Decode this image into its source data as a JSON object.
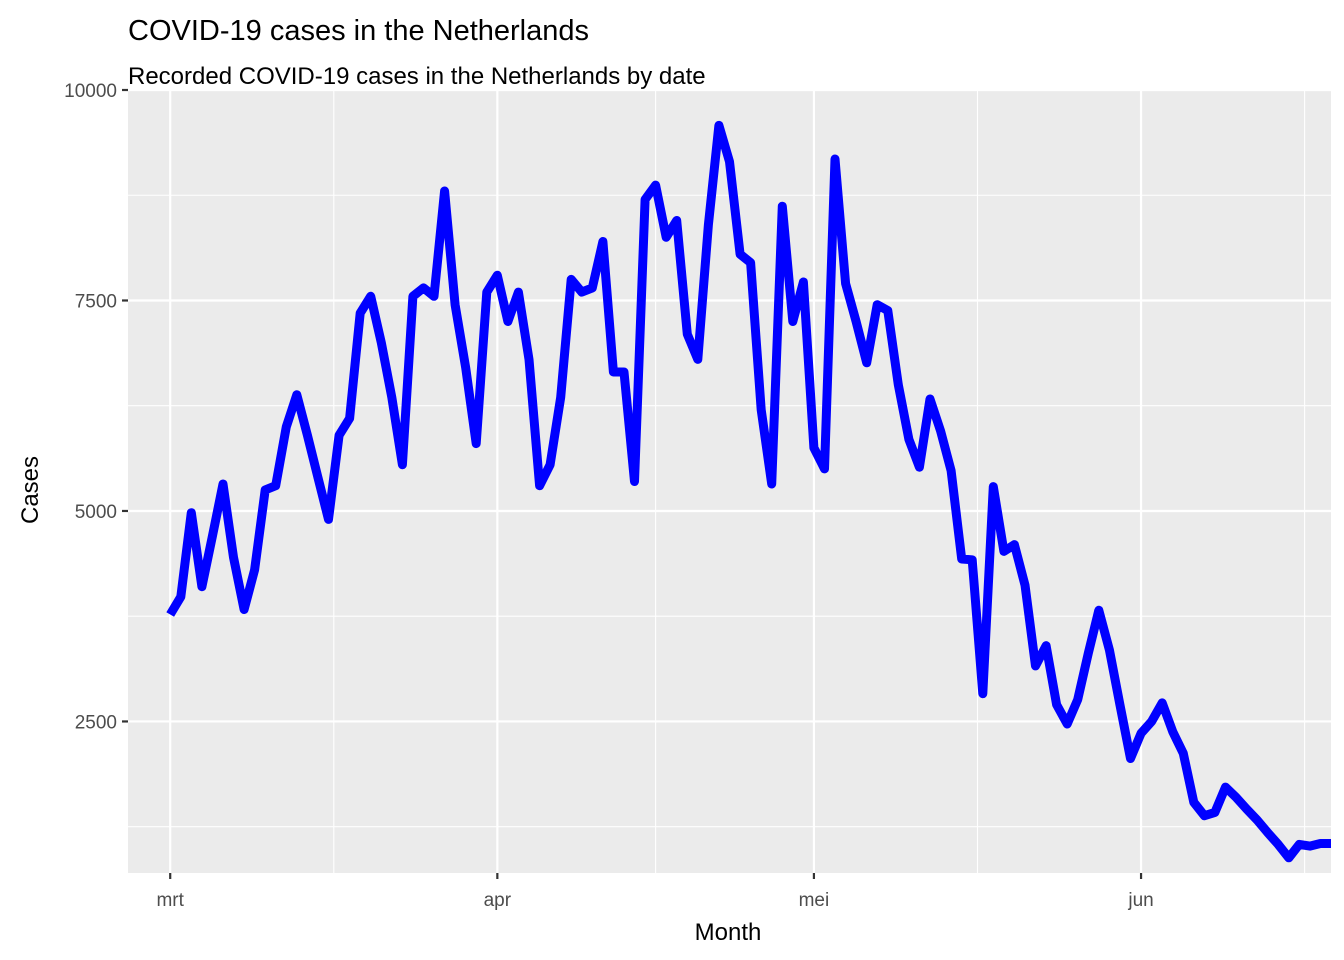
{
  "chart_data": {
    "type": "line",
    "title": "COVID-19 cases in the Netherlands",
    "subtitle": "Recorded COVID-19 cases in the Netherlands by date",
    "xlabel": "Month",
    "ylabel": "Cases",
    "x_tick_labels": [
      {
        "label": "mrt",
        "date": "2021-03-01"
      },
      {
        "label": "apr",
        "date": "2021-04-01"
      },
      {
        "label": "mei",
        "date": "2021-05-01"
      },
      {
        "label": "jun",
        "date": "2021-06-01"
      }
    ],
    "y_ticks": [
      2500,
      5000,
      7500,
      10000
    ],
    "y_tick_labels": [
      "2500",
      "5000",
      "7500",
      "10000"
    ],
    "xlim": [
      "2021-02-25",
      "2021-06-19"
    ],
    "ylim": [
      700,
      10000
    ],
    "grid": true,
    "legend": "none",
    "colors": {
      "panel": "#ebebeb",
      "grid": "#ffffff",
      "line": "#0000ff"
    },
    "series": [
      {
        "x": [
          "2021-03-01",
          "2021-03-02",
          "2021-03-03",
          "2021-03-04",
          "2021-03-05",
          "2021-03-06",
          "2021-03-07",
          "2021-03-08",
          "2021-03-09",
          "2021-03-10",
          "2021-03-11",
          "2021-03-12",
          "2021-03-13",
          "2021-03-14",
          "2021-03-15",
          "2021-03-16",
          "2021-03-17",
          "2021-03-18",
          "2021-03-19",
          "2021-03-20",
          "2021-03-21",
          "2021-03-22",
          "2021-03-23",
          "2021-03-24",
          "2021-03-25",
          "2021-03-26",
          "2021-03-27",
          "2021-03-28",
          "2021-03-29",
          "2021-03-30",
          "2021-03-31",
          "2021-04-01",
          "2021-04-02",
          "2021-04-03",
          "2021-04-04",
          "2021-04-05",
          "2021-04-06",
          "2021-04-07",
          "2021-04-08",
          "2021-04-09",
          "2021-04-10",
          "2021-04-11",
          "2021-04-12",
          "2021-04-13",
          "2021-04-14",
          "2021-04-15",
          "2021-04-16",
          "2021-04-17",
          "2021-04-18",
          "2021-04-19",
          "2021-04-20",
          "2021-04-21",
          "2021-04-22",
          "2021-04-23",
          "2021-04-24",
          "2021-04-25",
          "2021-04-26",
          "2021-04-27",
          "2021-04-28",
          "2021-04-29",
          "2021-04-30",
          "2021-05-01",
          "2021-05-02",
          "2021-05-03",
          "2021-05-04",
          "2021-05-05",
          "2021-05-06",
          "2021-05-07",
          "2021-05-08",
          "2021-05-09",
          "2021-05-10",
          "2021-05-11",
          "2021-05-12",
          "2021-05-13",
          "2021-05-14",
          "2021-05-15",
          "2021-05-16",
          "2021-05-17",
          "2021-05-18",
          "2021-05-19",
          "2021-05-20",
          "2021-05-21",
          "2021-05-22",
          "2021-05-23",
          "2021-05-24",
          "2021-05-25",
          "2021-05-26",
          "2021-05-27",
          "2021-05-28",
          "2021-05-29",
          "2021-05-30",
          "2021-05-31",
          "2021-06-01",
          "2021-06-02",
          "2021-06-03",
          "2021-06-04",
          "2021-06-05",
          "2021-06-06",
          "2021-06-07",
          "2021-06-08",
          "2021-06-09",
          "2021-06-10",
          "2021-06-11",
          "2021-06-12",
          "2021-06-13",
          "2021-06-14",
          "2021-06-15",
          "2021-06-16",
          "2021-06-17",
          "2021-06-18",
          "2021-06-19"
        ],
        "values": [
          3770,
          3980,
          4980,
          4100,
          4700,
          5320,
          4450,
          3830,
          4300,
          5250,
          5300,
          6000,
          6380,
          5900,
          5400,
          4900,
          5900,
          6100,
          7350,
          7550,
          7000,
          6350,
          5550,
          7550,
          7650,
          7550,
          8800,
          7450,
          6700,
          5800,
          7600,
          7800,
          7250,
          7600,
          6800,
          5300,
          5550,
          6350,
          7750,
          7600,
          7650,
          8200,
          6650,
          6650,
          5350,
          8700,
          8870,
          8250,
          8450,
          7100,
          6800,
          8400,
          9580,
          9150,
          8050,
          7950,
          6200,
          5320,
          8620,
          7250,
          7720,
          5750,
          5500,
          9180,
          7700,
          7250,
          6760,
          7450,
          7380,
          6500,
          5850,
          5520,
          6330,
          5950,
          5480,
          4430,
          4420,
          2830,
          5290,
          4520,
          4600,
          4120,
          3160,
          3400,
          2700,
          2470,
          2760,
          3310,
          3820,
          3350,
          2700,
          2060,
          2360,
          2500,
          2720,
          2380,
          2120,
          1540,
          1380,
          1420,
          1720,
          1600,
          1460,
          1330,
          1180,
          1040,
          880,
          1040,
          1020,
          1050,
          1050
        ]
      }
    ]
  }
}
